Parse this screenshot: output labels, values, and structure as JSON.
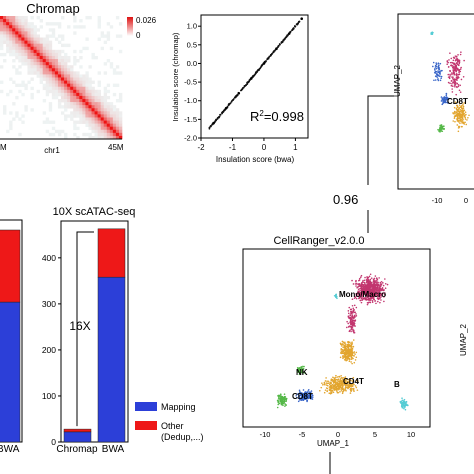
{
  "chromap": {
    "title": "Chromap",
    "colorbar_max": "0.026",
    "colorbar_min": "0",
    "xlabel": "chr1",
    "tick_left": "M",
    "tick_right": "45M",
    "colors": {
      "high": "#ee2020",
      "low": "#ffffff"
    }
  },
  "insulation": {
    "r2_label": "R",
    "r2_sup": "2",
    "r2_value": "=0.998",
    "xlabel": "Insulation score (bwa)",
    "ylabel": "Insulation score (chromap)"
  },
  "correlation": {
    "value": "0.96"
  },
  "umap_small": {
    "ylabel": "UMAP_2",
    "cell_label": "CD8T",
    "xticks": [
      "-10",
      "0"
    ]
  },
  "cellranger": {
    "title": "CellRanger_v2.0.0",
    "xlabel": "UMAP_1",
    "ylabel": "UMAP_2",
    "xticks": [
      "-10",
      "-5",
      "0",
      "5",
      "10"
    ],
    "clusters": [
      {
        "label": "Mono/Macro",
        "color": "#c2366f"
      },
      {
        "label": "CD4T",
        "color": "#e2a52e"
      },
      {
        "label": "NK",
        "color": "#55b848"
      },
      {
        "label": "CD8T",
        "color": "#3a66c8"
      },
      {
        "label": "B",
        "color": "#55ccd4"
      }
    ]
  },
  "bars_left": {
    "labels": [
      "BWA"
    ],
    "colors": {
      "mapping": "#2c3fd8",
      "other": "#ee1818"
    }
  },
  "scatac": {
    "title": "10X scATAC-seq",
    "fold_label": "16X",
    "legend": [
      "Mapping",
      "Other",
      "(Dedup,...)"
    ],
    "colors": {
      "mapping": "#2c3fd8",
      "other": "#ee1818"
    }
  },
  "chart_data": [
    {
      "type": "scatter",
      "x": [
        -1.6,
        -1.2,
        -0.8,
        -0.4,
        0.0,
        0.4,
        0.8,
        1.2
      ],
      "y": [
        -1.6,
        -1.2,
        -0.8,
        -0.4,
        0.0,
        0.4,
        0.8,
        1.2
      ],
      "title": "",
      "xlabel": "Insulation score (bwa)",
      "ylabel": "Insulation score (chromap)",
      "xlim": [
        -2,
        1.4
      ],
      "ylim": [
        -2,
        1.3
      ],
      "xticks": [
        -2,
        -1,
        0,
        1
      ],
      "yticks": [
        -2.0,
        -1.5,
        -1.0,
        -0.5,
        0.0,
        0.5,
        1.0
      ],
      "annotation": "R2=0.998",
      "grid": false
    },
    {
      "type": "bar",
      "title": "10X scATAC-seq",
      "categories": [
        "Chromap",
        "BWA"
      ],
      "series": [
        {
          "name": "Mapping",
          "values": [
            22,
            358
          ]
        },
        {
          "name": "Other (Dedup,...)",
          "values": [
            6,
            105
          ]
        }
      ],
      "stacked": true,
      "ylim": [
        0,
        480
      ],
      "yticks": [
        0,
        100,
        200,
        300,
        400
      ],
      "annotation": "16X",
      "legend": "bottom-right"
    },
    {
      "type": "bar",
      "title": "",
      "categories": [
        "BWA"
      ],
      "series": [
        {
          "name": "Mapping",
          "values": [
            0.66
          ]
        },
        {
          "name": "Other (Dedup,...)",
          "values": [
            0.34
          ]
        }
      ],
      "stacked": true
    }
  ]
}
